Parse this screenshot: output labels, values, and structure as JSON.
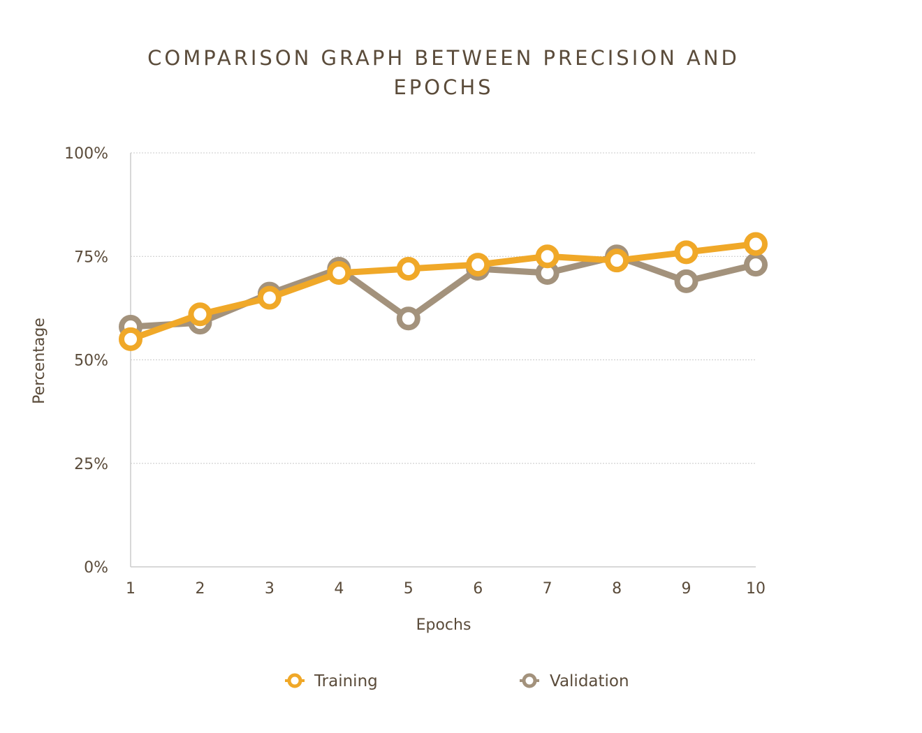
{
  "chart_data": {
    "type": "line",
    "title": "COMPARISON GRAPH BETWEEN PRECISION AND EPOCHS",
    "xlabel": "Epochs",
    "ylabel": "Percentage",
    "x": [
      "1",
      "2",
      "3",
      "4",
      "5",
      "6",
      "7",
      "8",
      "9",
      "10"
    ],
    "ylim": [
      0,
      100
    ],
    "yticks": [
      "0%",
      "25%",
      "50%",
      "75%",
      "100%"
    ],
    "ytick_values": [
      0,
      25,
      50,
      75,
      100
    ],
    "grid": true,
    "legend_position": "bottom",
    "series": [
      {
        "name": "Training",
        "color": "#f0a828",
        "values": [
          55,
          61,
          65,
          71,
          72,
          73,
          75,
          74,
          76,
          78
        ]
      },
      {
        "name": "Validation",
        "color": "#a3927c",
        "values": [
          58,
          59,
          66,
          72,
          60,
          72,
          71,
          75,
          69,
          73
        ]
      }
    ]
  }
}
